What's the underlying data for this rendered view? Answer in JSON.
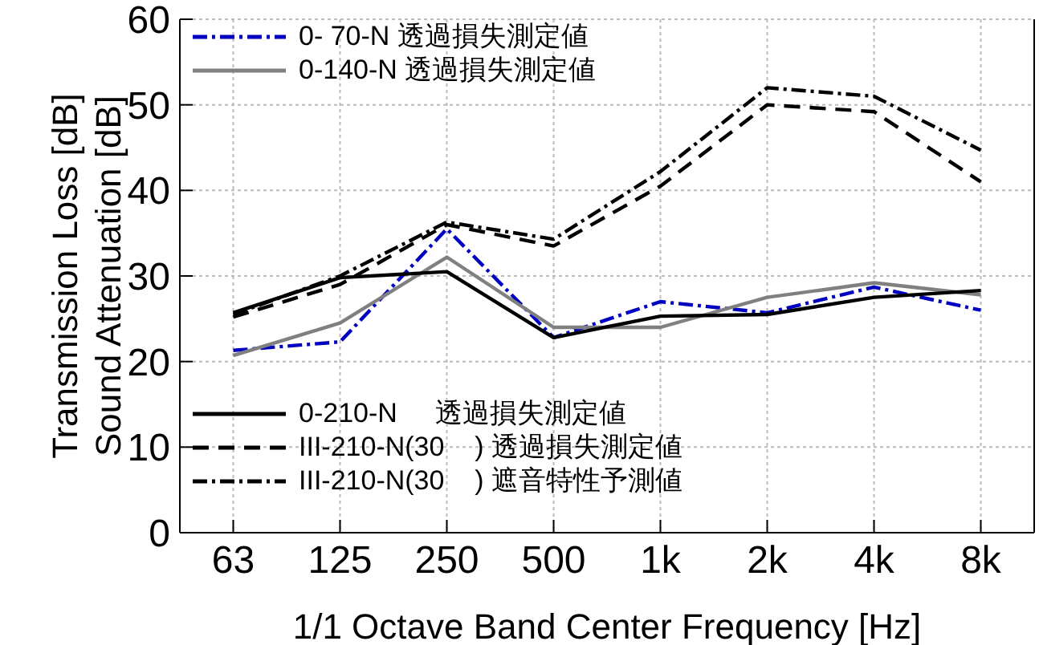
{
  "chart_data": {
    "type": "line",
    "xlabel": "1/1 Octave Band Center Frequency [Hz]",
    "ylabel": "Transmission Loss [dB]\nSound Attenuation [dB]",
    "categories": [
      "63",
      "125",
      "250",
      "500",
      "1k",
      "2k",
      "4k",
      "8k"
    ],
    "ylim": [
      0,
      60
    ],
    "yticks": [
      0,
      10,
      20,
      30,
      40,
      50,
      60
    ],
    "grid": true,
    "legend": "left",
    "marker": "none",
    "series": [
      {
        "name": "0- 70-N 透過損失測定値",
        "color": "#0000c0",
        "line_style": "dashdot",
        "values": [
          21.3,
          22.3,
          35.5,
          22.8,
          27,
          25.7,
          28.7,
          26
        ]
      },
      {
        "name": "0-140-N 透過損失測定値",
        "color": "#808080",
        "line_style": "solid",
        "values": [
          20.7,
          24.5,
          32.2,
          24,
          24,
          27.5,
          29.2,
          27.8
        ]
      },
      {
        "name": "0-210-N     透過損失測定値",
        "color": "#000000",
        "line_style": "solid",
        "values": [
          25.7,
          29.8,
          30.5,
          22.8,
          25.3,
          25.5,
          27.5,
          28.3
        ]
      },
      {
        "name": "III-210-N(30    ) 透過損失測定値",
        "color": "#000000",
        "line_style": "dashed",
        "values": [
          25.2,
          29,
          36,
          33.5,
          40.5,
          50,
          49.2,
          41
        ]
      },
      {
        "name": "III-210-N(30    ) 遮音特性予測値",
        "color": "#000000",
        "line_style": "dashdot",
        "values": [
          25.5,
          30,
          36.3,
          34.3,
          42.2,
          52,
          51,
          44.7
        ]
      }
    ]
  }
}
